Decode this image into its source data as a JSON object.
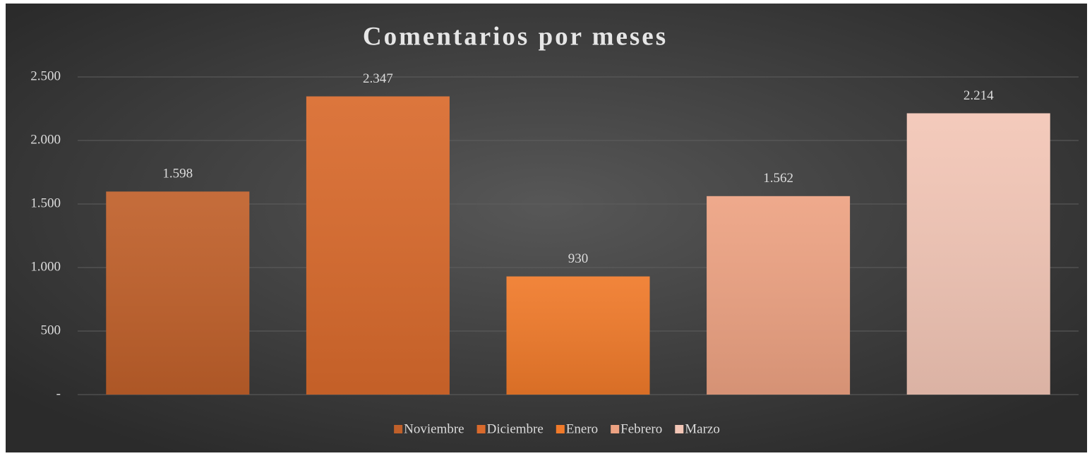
{
  "chart_data": {
    "type": "bar",
    "title": "Comentarios por meses",
    "series": [
      {
        "name": "Noviembre",
        "color": "#c0602a",
        "values": [
          1598
        ],
        "value_labels": [
          "1.598"
        ]
      },
      {
        "name": "Diciembre",
        "color": "#d96a2c",
        "values": [
          2347
        ],
        "value_labels": [
          "2.347"
        ]
      },
      {
        "name": "Enero",
        "color": "#f07a2a",
        "values": [
          930
        ],
        "value_labels": [
          "930"
        ]
      },
      {
        "name": "Febrero",
        "color": "#eda282",
        "values": [
          1562
        ],
        "value_labels": [
          "1.562"
        ]
      },
      {
        "name": "Marzo",
        "color": "#f3c6b6",
        "values": [
          2214
        ],
        "value_labels": [
          "2.214"
        ]
      }
    ],
    "ylim": [
      0,
      2500
    ],
    "yticks": [
      {
        "value": 0,
        "label": "-"
      },
      500,
      {
        "value": 1000,
        "label": "1.000"
      },
      {
        "value": 1500,
        "label": "1.500"
      },
      {
        "value": 2000,
        "label": "2.000"
      },
      {
        "value": 2500,
        "label": "2.500"
      }
    ],
    "grid": true,
    "legend": "bottom"
  }
}
